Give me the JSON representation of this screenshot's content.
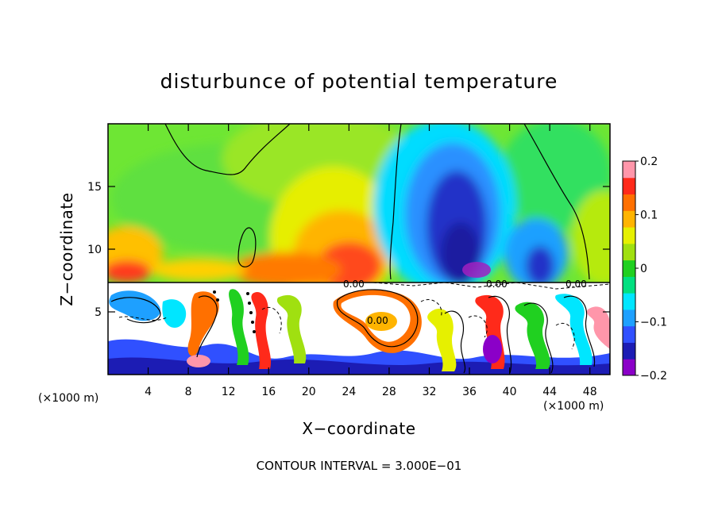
{
  "chart_data": {
    "type": "heatmap",
    "title": "disturbunce of potential temperature",
    "xlabel": "X−coordinate",
    "ylabel": "Z−coordinate",
    "x_unit": "(×1000 m)",
    "y_unit": "(×1000 m)",
    "xlim": [
      0,
      50
    ],
    "ylim": [
      0,
      20
    ],
    "x_ticks": [
      4,
      8,
      12,
      16,
      20,
      24,
      28,
      32,
      36,
      40,
      44,
      48
    ],
    "y_ticks": [
      5,
      10,
      15
    ],
    "x_tick_labels": [
      "4",
      "8",
      "12",
      "16",
      "20",
      "24",
      "28",
      "32",
      "36",
      "40",
      "44",
      "48"
    ],
    "y_tick_labels": [
      "5",
      "10",
      "15"
    ],
    "colorbar": {
      "range": [
        -0.2,
        0.2
      ],
      "tick_values": [
        0.2,
        0.1,
        0,
        -0.1,
        -0.2
      ],
      "tick_labels": [
        "0.2",
        "0.1",
        "0",
        "−0.1",
        "−0.2"
      ],
      "colors": [
        "#8b00c8",
        "#1c1cb4",
        "#3050ff",
        "#1ea0ff",
        "#00e6ff",
        "#00e080",
        "#20d020",
        "#a0e010",
        "#e6f000",
        "#ffb400",
        "#ff7000",
        "#ff2a1a",
        "#ff96aa"
      ]
    },
    "contour_labels": [
      "0.00",
      "0.00",
      "0.00",
      "0.00"
    ],
    "contour_interval_text": "CONTOUR INTERVAL = 3.000E−01",
    "features": [
      {
        "name": "positive band above base",
        "x_range": [
          0,
          27
        ],
        "z_range": [
          7.2,
          12
        ],
        "value": 0.12
      },
      {
        "name": "warm core",
        "x_center": 24,
        "z_center": 9.5,
        "value": 0.15
      },
      {
        "name": "cold core",
        "x_center": 35,
        "z_center": 13,
        "value": -0.18
      },
      {
        "name": "secondary cold core",
        "x_center": 44,
        "z_center": 10,
        "value": -0.12
      },
      {
        "name": "upper background",
        "z_range": [
          12,
          20
        ],
        "value": 0.02
      }
    ]
  }
}
